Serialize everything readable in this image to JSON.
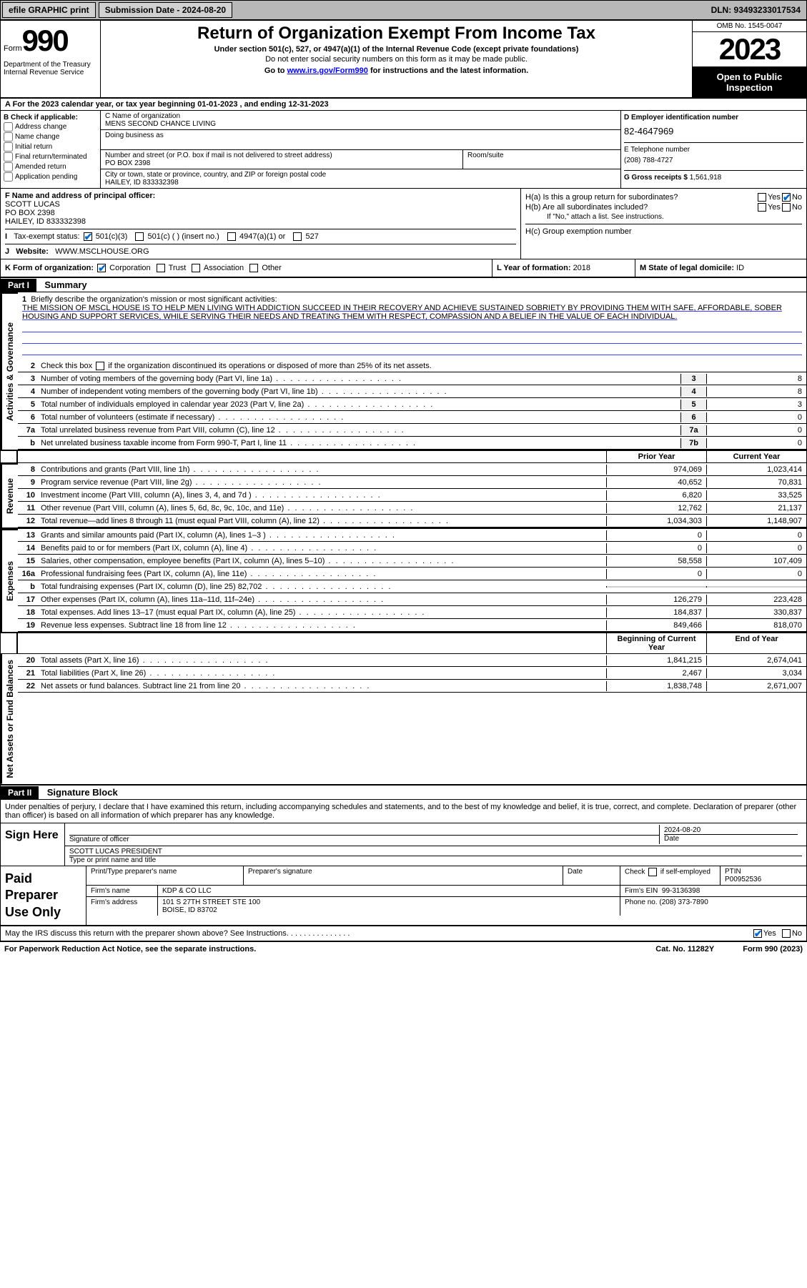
{
  "topbar": {
    "efile": "efile GRAPHIC print",
    "submission_label": "Submission Date - 2024-08-20",
    "dln": "DLN: 93493233017534"
  },
  "header": {
    "form_word": "Form",
    "form_num": "990",
    "dept": "Department of the Treasury Internal Revenue Service",
    "title": "Return of Organization Exempt From Income Tax",
    "subtitle": "Under section 501(c), 527, or 4947(a)(1) of the Internal Revenue Code (except private foundations)",
    "sub2": "Do not enter social security numbers on this form as it may be made public.",
    "goto_pre": "Go to ",
    "goto_link": "www.irs.gov/Form990",
    "goto_post": " for instructions and the latest information.",
    "omb": "OMB No. 1545-0047",
    "year": "2023",
    "open": "Open to Public Inspection"
  },
  "row_a": "A For the 2023 calendar year, or tax year beginning 01-01-2023    , and ending 12-31-2023",
  "section_b": {
    "b_label": "B Check if applicable:",
    "opts": [
      "Address change",
      "Name change",
      "Initial return",
      "Final return/terminated",
      "Amended return",
      "Application pending"
    ],
    "c_name_label": "C Name of organization",
    "c_name": "MENS SECOND CHANCE LIVING",
    "dba_label": "Doing business as",
    "addr_label": "Number and street (or P.O. box if mail is not delivered to street address)",
    "room_label": "Room/suite",
    "addr": "PO BOX 2398",
    "city_label": "City or town, state or province, country, and ZIP or foreign postal code",
    "city": "HAILEY, ID  833332398",
    "d_label": "D Employer identification number",
    "d_ein": "82-4647969",
    "e_label": "E Telephone number",
    "e_phone": "(208) 788-4727",
    "g_label": "G Gross receipts $ ",
    "g_val": "1,561,918"
  },
  "fhi": {
    "f_label": "F Name and address of principal officer:",
    "f_name": "SCOTT LUCAS",
    "f_addr1": "PO BOX 2398",
    "f_addr2": "HAILEY, ID  833332398",
    "i_label": "Tax-exempt status:",
    "i_501c3": "501(c)(3)",
    "i_501c": "501(c) (  ) (insert no.)",
    "i_4947": "4947(a)(1) or",
    "i_527": "527",
    "j_label": "Website:",
    "j_val": "WWW.MSCLHOUSE.ORG",
    "ha": "H(a)  Is this a group return for subordinates?",
    "hb": "H(b)  Are all subordinates included?",
    "hb_note": "If \"No,\" attach a list. See instructions.",
    "hc": "H(c)  Group exemption number",
    "yes": "Yes",
    "no": "No"
  },
  "row_k": {
    "k_label": "K Form of organization:",
    "k_corp": "Corporation",
    "k_trust": "Trust",
    "k_assoc": "Association",
    "k_other": "Other",
    "l_label": "L Year of formation: ",
    "l_val": "2018",
    "m_label": "M State of legal domicile: ",
    "m_val": "ID"
  },
  "part1": {
    "hdr": "Part I",
    "title": "Summary",
    "side_gov": "Activities & Governance",
    "side_rev": "Revenue",
    "side_exp": "Expenses",
    "side_net": "Net Assets or Fund Balances",
    "l1_label": "Briefly describe the organization's mission or most significant activities:",
    "l1_text": "THE MISSION OF MSCL HOUSE IS TO HELP MEN LIVING WITH ADDICTION SUCCEED IN THEIR RECOVERY AND ACHIEVE SUSTAINED SOBRIETY BY PROVIDING THEM WITH SAFE, AFFORDABLE, SOBER HOUSING AND SUPPORT SERVICES, WHILE SERVING THEIR NEEDS AND TREATING THEM WITH RESPECT, COMPASSION AND A BELIEF IN THE VALUE OF EACH INDIVIDUAL.",
    "l2": "Check this box       if the organization discontinued its operations or disposed of more than 25% of its net assets.",
    "lines_narrow": [
      {
        "n": "3",
        "t": "Number of voting members of the governing body (Part VI, line 1a)",
        "box": "3",
        "v": "8"
      },
      {
        "n": "4",
        "t": "Number of independent voting members of the governing body (Part VI, line 1b)",
        "box": "4",
        "v": "8"
      },
      {
        "n": "5",
        "t": "Total number of individuals employed in calendar year 2023 (Part V, line 2a)",
        "box": "5",
        "v": "3"
      },
      {
        "n": "6",
        "t": "Total number of volunteers (estimate if necessary)",
        "box": "6",
        "v": "0"
      },
      {
        "n": "7a",
        "t": "Total unrelated business revenue from Part VIII, column (C), line 12",
        "box": "7a",
        "v": "0"
      },
      {
        "n": "b",
        "t": "Net unrelated business taxable income from Form 990-T, Part I, line 11",
        "box": "7b",
        "v": "0"
      }
    ],
    "col_prior": "Prior Year",
    "col_curr": "Current Year",
    "rev": [
      {
        "n": "8",
        "t": "Contributions and grants (Part VIII, line 1h)",
        "p": "974,069",
        "c": "1,023,414"
      },
      {
        "n": "9",
        "t": "Program service revenue (Part VIII, line 2g)",
        "p": "40,652",
        "c": "70,831"
      },
      {
        "n": "10",
        "t": "Investment income (Part VIII, column (A), lines 3, 4, and 7d )",
        "p": "6,820",
        "c": "33,525"
      },
      {
        "n": "11",
        "t": "Other revenue (Part VIII, column (A), lines 5, 6d, 8c, 9c, 10c, and 11e)",
        "p": "12,762",
        "c": "21,137"
      },
      {
        "n": "12",
        "t": "Total revenue—add lines 8 through 11 (must equal Part VIII, column (A), line 12)",
        "p": "1,034,303",
        "c": "1,148,907"
      }
    ],
    "exp": [
      {
        "n": "13",
        "t": "Grants and similar amounts paid (Part IX, column (A), lines 1–3 )",
        "p": "0",
        "c": "0"
      },
      {
        "n": "14",
        "t": "Benefits paid to or for members (Part IX, column (A), line 4)",
        "p": "0",
        "c": "0"
      },
      {
        "n": "15",
        "t": "Salaries, other compensation, employee benefits (Part IX, column (A), lines 5–10)",
        "p": "58,558",
        "c": "107,409"
      },
      {
        "n": "16a",
        "t": "Professional fundraising fees (Part IX, column (A), line 11e)",
        "p": "0",
        "c": "0"
      },
      {
        "n": "b",
        "t": "Total fundraising expenses (Part IX, column (D), line 25) 82,702",
        "p": "",
        "c": ""
      },
      {
        "n": "17",
        "t": "Other expenses (Part IX, column (A), lines 11a–11d, 11f–24e)",
        "p": "126,279",
        "c": "223,428"
      },
      {
        "n": "18",
        "t": "Total expenses. Add lines 13–17 (must equal Part IX, column (A), line 25)",
        "p": "184,837",
        "c": "330,837"
      },
      {
        "n": "19",
        "t": "Revenue less expenses. Subtract line 18 from line 12",
        "p": "849,466",
        "c": "818,070"
      }
    ],
    "col_beg": "Beginning of Current Year",
    "col_end": "End of Year",
    "net": [
      {
        "n": "20",
        "t": "Total assets (Part X, line 16)",
        "p": "1,841,215",
        "c": "2,674,041"
      },
      {
        "n": "21",
        "t": "Total liabilities (Part X, line 26)",
        "p": "2,467",
        "c": "3,034"
      },
      {
        "n": "22",
        "t": "Net assets or fund balances. Subtract line 21 from line 20",
        "p": "1,838,748",
        "c": "2,671,007"
      }
    ]
  },
  "part2": {
    "hdr": "Part II",
    "title": "Signature Block",
    "perjury": "Under penalties of perjury, I declare that I have examined this return, including accompanying schedules and statements, and to the best of my knowledge and belief, it is true, correct, and complete. Declaration of preparer (other than officer) is based on all information of which preparer has any knowledge.",
    "sign_here": "Sign Here",
    "sig_officer": "Signature of officer",
    "sig_name": "SCOTT LUCAS PRESIDENT",
    "sig_type": "Type or print name and title",
    "date_label": "Date",
    "date_val": "2024-08-20",
    "paid": "Paid Preparer Use Only",
    "p_name_label": "Print/Type preparer's name",
    "p_sig_label": "Preparer's signature",
    "p_date_label": "Date",
    "p_check": "Check         if self-employed",
    "ptin_label": "PTIN",
    "ptin": "P00952536",
    "firm_name_label": "Firm's name",
    "firm_name": "KDP & CO LLC",
    "firm_ein_label": "Firm's EIN",
    "firm_ein": "99-3136398",
    "firm_addr_label": "Firm's address",
    "firm_addr1": "101 S 27TH STREET STE 100",
    "firm_addr2": "BOISE, ID  83702",
    "phone_label": "Phone no. ",
    "phone": "(208) 373-7890",
    "discuss": "May the IRS discuss this return with the preparer shown above? See Instructions.",
    "yes": "Yes",
    "no": "No"
  },
  "footer": {
    "pra": "For Paperwork Reduction Act Notice, see the separate instructions.",
    "cat": "Cat. No. 11282Y",
    "form": "Form 990 (2023)"
  }
}
